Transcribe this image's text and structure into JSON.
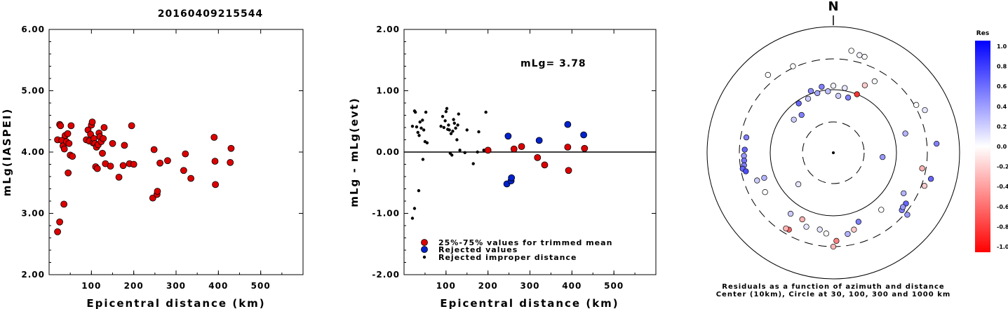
{
  "title": "20160409215544",
  "chart_data": [
    {
      "type": "scatter",
      "xlabel": "Epicentral distance (km)",
      "ylabel": "mLg(IASPEI)",
      "xlim": [
        0,
        600
      ],
      "ylim": [
        2.0,
        6.0
      ],
      "xticks": [
        "100",
        "200",
        "300",
        "400",
        "500"
      ],
      "yticks": [
        "2.00",
        "3.00",
        "4.00",
        "5.00",
        "6.00"
      ],
      "color": "#dd0000",
      "points": [
        [
          20,
          2.7
        ],
        [
          25,
          2.86
        ],
        [
          35,
          3.15
        ],
        [
          45,
          3.66
        ],
        [
          20,
          4.2
        ],
        [
          25,
          4.45
        ],
        [
          27,
          4.43
        ],
        [
          30,
          4.19
        ],
        [
          33,
          4.1
        ],
        [
          36,
          4.05
        ],
        [
          38,
          4.27
        ],
        [
          41,
          4.17
        ],
        [
          44,
          4.3
        ],
        [
          47,
          4.14
        ],
        [
          50,
          3.95
        ],
        [
          52,
          4.43
        ],
        [
          55,
          3.93
        ],
        [
          88,
          4.2
        ],
        [
          92,
          4.36
        ],
        [
          95,
          4.18
        ],
        [
          98,
          4.29
        ],
        [
          100,
          4.44
        ],
        [
          102,
          4.49
        ],
        [
          104,
          4.15
        ],
        [
          106,
          4.22
        ],
        [
          108,
          4.14
        ],
        [
          110,
          3.76
        ],
        [
          112,
          4.08
        ],
        [
          114,
          3.73
        ],
        [
          116,
          4.12
        ],
        [
          118,
          4.31
        ],
        [
          120,
          4.25
        ],
        [
          123,
          4.17
        ],
        [
          126,
          3.98
        ],
        [
          128,
          4.22
        ],
        [
          130,
          4.4
        ],
        [
          133,
          3.81
        ],
        [
          145,
          3.77
        ],
        [
          150,
          4.14
        ],
        [
          165,
          3.59
        ],
        [
          175,
          3.78
        ],
        [
          178,
          4.11
        ],
        [
          190,
          3.81
        ],
        [
          195,
          4.43
        ],
        [
          200,
          3.8
        ],
        [
          245,
          3.25
        ],
        [
          248,
          4.04
        ],
        [
          255,
          3.31
        ],
        [
          256,
          3.36
        ],
        [
          262,
          3.82
        ],
        [
          280,
          3.86
        ],
        [
          318,
          3.7
        ],
        [
          322,
          3.97
        ],
        [
          335,
          3.57
        ],
        [
          390,
          4.24
        ],
        [
          392,
          3.85
        ],
        [
          393,
          3.47
        ],
        [
          428,
          3.83
        ],
        [
          430,
          4.06
        ]
      ]
    },
    {
      "type": "scatter",
      "xlabel": "Epicentral distance (km)",
      "ylabel": "mLg - mLg(evt)",
      "xlim": [
        0,
        600
      ],
      "ylim": [
        -2.0,
        2.0
      ],
      "xticks": [
        "100",
        "200",
        "300",
        "400",
        "500"
      ],
      "yticks": [
        "-2.00",
        "-1.00",
        "0.00",
        "1.00",
        "2.00"
      ],
      "annotation": "mLg= 3.78",
      "legend": {
        "placement": "bottom-left",
        "entries": [
          "25%-75% values for trimmed mean",
          "Rejected values",
          "Rejected improper distance"
        ]
      },
      "trimmed": [
        [
          200,
          0.03
        ],
        [
          262,
          0.05
        ],
        [
          280,
          0.09
        ],
        [
          318,
          -0.09
        ],
        [
          335,
          -0.21
        ],
        [
          390,
          0.08
        ],
        [
          392,
          -0.3
        ],
        [
          430,
          0.06
        ]
      ],
      "rejected": [
        [
          248,
          0.26
        ],
        [
          245,
          -0.52
        ],
        [
          255,
          -0.47
        ],
        [
          256,
          -0.42
        ],
        [
          322,
          0.19
        ],
        [
          390,
          0.45
        ],
        [
          428,
          0.28
        ]
      ],
      "improper": [
        [
          20,
          -1.08
        ],
        [
          25,
          -0.92
        ],
        [
          35,
          -0.63
        ],
        [
          45,
          -0.12
        ],
        [
          20,
          0.42
        ],
        [
          25,
          0.67
        ],
        [
          27,
          0.65
        ],
        [
          30,
          0.41
        ],
        [
          33,
          0.32
        ],
        [
          36,
          0.27
        ],
        [
          38,
          0.49
        ],
        [
          41,
          0.39
        ],
        [
          44,
          0.52
        ],
        [
          47,
          0.36
        ],
        [
          50,
          0.17
        ],
        [
          52,
          0.65
        ],
        [
          55,
          0.15
        ],
        [
          88,
          0.42
        ],
        [
          92,
          0.58
        ],
        [
          95,
          0.4
        ],
        [
          98,
          0.51
        ],
        [
          100,
          0.66
        ],
        [
          102,
          0.71
        ],
        [
          104,
          0.37
        ],
        [
          106,
          0.44
        ],
        [
          108,
          0.36
        ],
        [
          110,
          -0.02
        ],
        [
          112,
          0.3
        ],
        [
          114,
          -0.05
        ],
        [
          116,
          0.34
        ],
        [
          118,
          0.53
        ],
        [
          120,
          0.47
        ],
        [
          123,
          0.39
        ],
        [
          126,
          0.2
        ],
        [
          128,
          0.44
        ],
        [
          130,
          0.62
        ],
        [
          133,
          0.03
        ],
        [
          145,
          -0.01
        ],
        [
          150,
          0.36
        ],
        [
          165,
          -0.19
        ],
        [
          175,
          0.0
        ],
        [
          178,
          0.33
        ],
        [
          190,
          0.03
        ],
        [
          195,
          0.65
        ]
      ]
    },
    {
      "type": "polar-scatter",
      "north_label": "N",
      "caption": [
        "Residuals as a function of azimuth and distance",
        "Center (10km), Circle at 30, 100, 300 and 1000 km"
      ],
      "colorbar": {
        "title": "Res",
        "ticks": [
          "1.0",
          "0.8",
          "0.6",
          "0.4",
          "0.2",
          "0.0",
          "-0.2",
          "-0.4",
          "-0.6",
          "-0.8",
          "-1.0"
        ],
        "min_color": "#ff0000",
        "max_color": "#0000ff"
      },
      "rings_km": [
        30,
        100,
        300,
        1000
      ],
      "points": [
        [
          10,
          430,
          0
        ],
        [
          15,
          392,
          0.05
        ],
        [
          18,
          390,
          -0.02
        ],
        [
          320,
          400,
          0
        ],
        [
          335,
          318,
          0
        ],
        [
          30,
          200,
          0.03
        ],
        [
          340,
          110,
          0.45
        ],
        [
          345,
          95,
          0.35
        ],
        [
          350,
          115,
          0.5
        ],
        [
          355,
          95,
          0.25
        ],
        [
          5,
          80,
          0.2
        ],
        [
          15,
          80,
          0.5
        ],
        [
          22,
          100,
          -0.8
        ],
        [
          0,
          115,
          0.05
        ],
        [
          25,
          150,
          -0.2
        ],
        [
          10,
          110,
          0.1
        ],
        [
          335,
          88,
          0.2
        ],
        [
          325,
          90,
          0.6
        ],
        [
          320,
          60,
          0.5
        ],
        [
          310,
          65,
          0.2
        ],
        [
          280,
          245,
          0.5
        ],
        [
          272,
          248,
          0.6
        ],
        [
          268,
          255,
          0.4
        ],
        [
          265,
          256,
          0.55
        ],
        [
          262,
          262,
          0.5
        ],
        [
          260,
          280,
          0.6
        ],
        [
          258,
          255,
          0.7
        ],
        [
          250,
          190,
          0.2
        ],
        [
          240,
          175,
          0.0
        ],
        [
          250,
          145,
          0.3
        ],
        [
          228,
          55,
          0.1
        ],
        [
          75,
          150,
          0.3
        ],
        [
          95,
          60,
          0.4
        ],
        [
          100,
          262,
          -0.3
        ],
        [
          110,
          335,
          -0.2
        ],
        [
          105,
          390,
          0.6
        ],
        [
          85,
          430,
          0.5
        ],
        [
          125,
          248,
          0.6
        ],
        [
          130,
          255,
          0.5
        ],
        [
          128,
          245,
          0.4
        ],
        [
          120,
          190,
          0.3
        ],
        [
          140,
          150,
          0.0
        ],
        [
          160,
          145,
          0.5
        ],
        [
          165,
          180,
          -0.2
        ],
        [
          170,
          200,
          0.3
        ],
        [
          185,
          190,
          0
        ],
        [
          180,
          300,
          -0.3
        ],
        [
          178,
          245,
          -0.5
        ],
        [
          205,
          145,
          -0.3
        ],
        [
          210,
          250,
          -0.6
        ],
        [
          212,
          255,
          -0.3
        ],
        [
          200,
          175,
          0.1
        ],
        [
          215,
          150,
          0.2
        ],
        [
          190,
          170,
          0.1
        ],
        [
          60,
          320,
          0
        ],
        [
          65,
          390,
          0.1
        ],
        [
          130,
          330,
          0.4
        ]
      ]
    }
  ]
}
